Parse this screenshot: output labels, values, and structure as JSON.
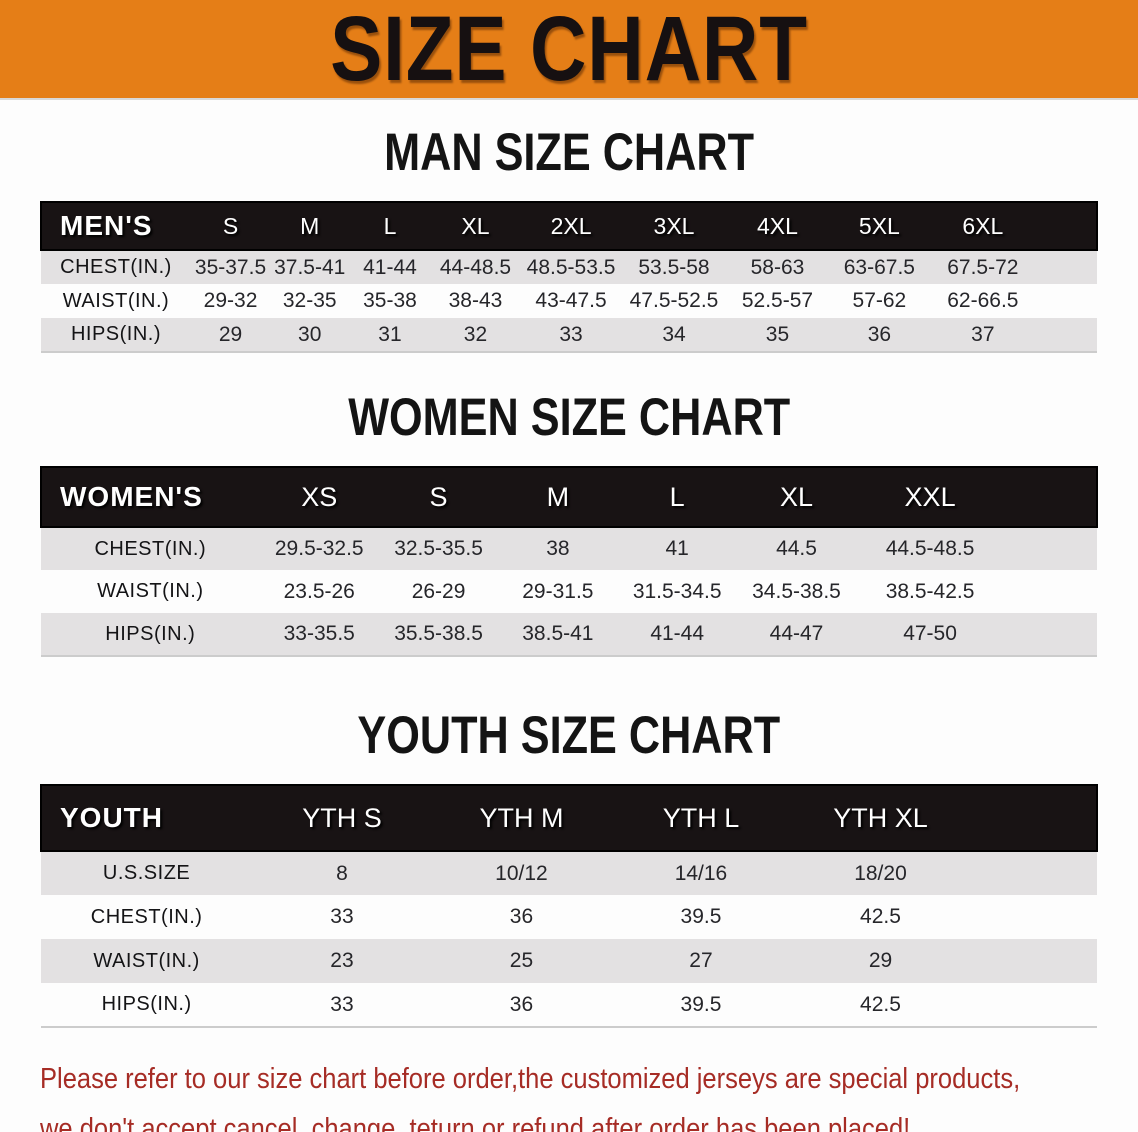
{
  "banner": {
    "title": "SIZE CHART",
    "bg_color": "#e57e17",
    "text_color": "#161011"
  },
  "sections": [
    {
      "heading": "MAN SIZE CHART",
      "table": {
        "header_label": "MEN'S",
        "columns": [
          "S",
          "M",
          "L",
          "XL",
          "2XL",
          "3XL",
          "4XL",
          "5XL",
          "6XL"
        ],
        "rows": [
          {
            "label": "CHEST(IN.)",
            "values": [
              "35-37.5",
              "37.5-41",
              "41-44",
              "44-48.5",
              "48.5-53.5",
              "53.5-58",
              "58-63",
              "63-67.5",
              "67.5-72"
            ]
          },
          {
            "label": "WAIST(IN.)",
            "values": [
              "29-32",
              "32-35",
              "35-38",
              "38-43",
              "43-47.5",
              "47.5-52.5",
              "52.5-57",
              "57-62",
              "62-66.5"
            ]
          },
          {
            "label": "HIPS(IN.)",
            "values": [
              "29",
              "30",
              "31",
              "32",
              "33",
              "34",
              "35",
              "36",
              "37"
            ]
          }
        ]
      }
    },
    {
      "heading": "WOMEN SIZE CHART",
      "table": {
        "header_label": "WOMEN'S",
        "columns": [
          "XS",
          "S",
          "M",
          "L",
          "XL",
          "XXL"
        ],
        "rows": [
          {
            "label": "CHEST(IN.)",
            "values": [
              "29.5-32.5",
              "32.5-35.5",
              "38",
              "41",
              "44.5",
              "44.5-48.5"
            ]
          },
          {
            "label": "WAIST(IN.)",
            "values": [
              "23.5-26",
              "26-29",
              "29-31.5",
              "31.5-34.5",
              "34.5-38.5",
              "38.5-42.5"
            ]
          },
          {
            "label": "HIPS(IN.)",
            "values": [
              "33-35.5",
              "35.5-38.5",
              "38.5-41",
              "41-44",
              "44-47",
              "47-50"
            ]
          }
        ]
      }
    },
    {
      "heading": "YOUTH SIZE CHART",
      "table": {
        "header_label": "YOUTH",
        "columns": [
          "YTH S",
          "YTH M",
          "YTH L",
          "YTH XL"
        ],
        "rows": [
          {
            "label": "U.S.SIZE",
            "values": [
              "8",
              "10/12",
              "14/16",
              "18/20"
            ]
          },
          {
            "label": "CHEST(IN.)",
            "values": [
              "33",
              "36",
              "39.5",
              "42.5"
            ]
          },
          {
            "label": "WAIST(IN.)",
            "values": [
              "23",
              "25",
              "27",
              "29"
            ]
          },
          {
            "label": "HIPS(IN.)",
            "values": [
              "33",
              "36",
              "39.5",
              "42.5"
            ]
          }
        ]
      }
    }
  ],
  "footer_note": {
    "color": "#a62c25",
    "lines": [
      "Please refer to our size chart before order,the customized jerseys are special products,",
      "we don't accept cancel, change, teturn or refund after order has been placed!"
    ]
  }
}
